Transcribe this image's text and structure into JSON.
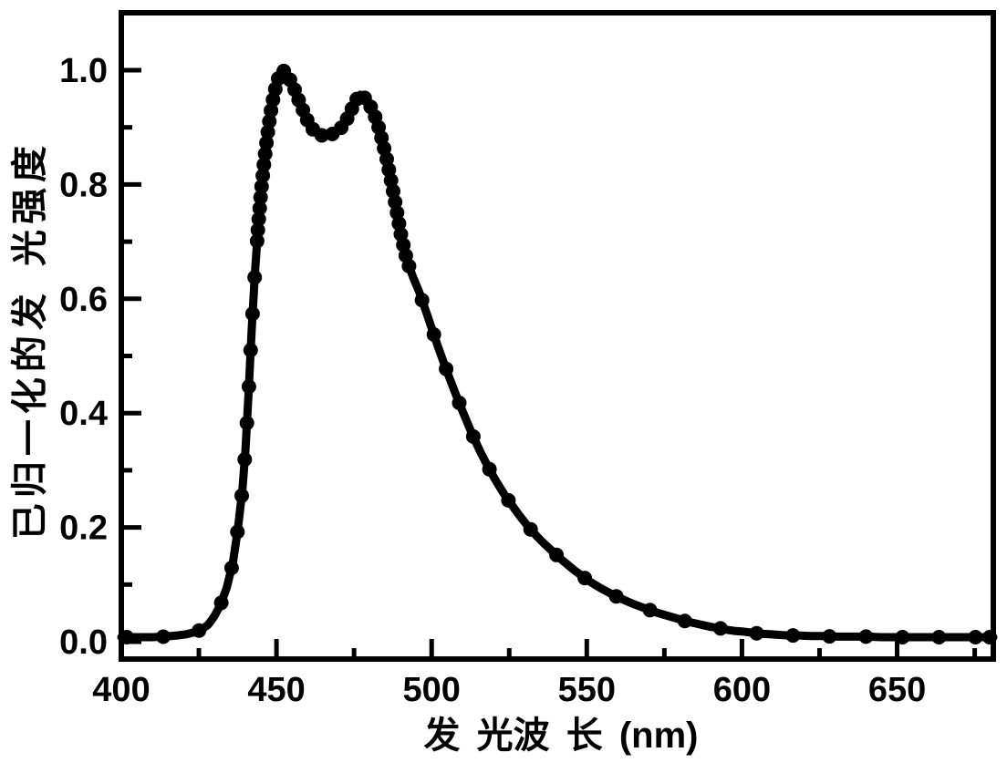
{
  "chart_data": {
    "type": "line",
    "title": "",
    "xlabel": "发 光波 长 (nm)",
    "ylabel": "已归一化的发 光强度",
    "x_unit": "nm",
    "xlim": [
      400,
      681
    ],
    "ylim": [
      -0.034,
      1.106
    ],
    "x_tick_labels": [
      "400",
      "450",
      "500",
      "550",
      "600",
      "650"
    ],
    "x_minor_ticks": [
      425,
      475,
      525,
      575,
      625,
      675
    ],
    "y_tick_labels": [
      "0.0",
      "0.2",
      "0.4",
      "0.6",
      "0.8",
      "1.0"
    ],
    "y_minor_ticks": [
      0.1,
      0.3,
      0.5,
      0.7,
      0.9
    ],
    "grid": false,
    "legend": "none",
    "background_color": "#ffffff",
    "line_color": "#000000",
    "marker_shape": "filled-circle",
    "peaks": [
      {
        "wavelength_nm": 451.5,
        "intensity": 1.0
      },
      {
        "wavelength_nm": 477.0,
        "intensity": 0.957
      }
    ],
    "valley": {
      "wavelength_nm": 465.0,
      "intensity": 0.885
    },
    "points": [
      [
        400,
        0.008
      ],
      [
        405,
        0.008
      ],
      [
        410,
        0.008
      ],
      [
        414,
        0.009
      ],
      [
        418,
        0.011
      ],
      [
        421,
        0.013
      ],
      [
        424,
        0.017
      ],
      [
        426,
        0.022
      ],
      [
        428,
        0.03
      ],
      [
        430,
        0.045
      ],
      [
        432,
        0.065
      ],
      [
        434,
        0.095
      ],
      [
        436,
        0.14
      ],
      [
        437.5,
        0.195
      ],
      [
        439,
        0.265
      ],
      [
        440,
        0.335
      ],
      [
        441,
        0.435
      ],
      [
        442,
        0.545
      ],
      [
        443,
        0.64
      ],
      [
        444,
        0.72
      ],
      [
        445,
        0.785
      ],
      [
        446,
        0.838
      ],
      [
        447,
        0.884
      ],
      [
        448,
        0.922
      ],
      [
        449,
        0.952
      ],
      [
        450,
        0.976
      ],
      [
        451,
        0.993
      ],
      [
        452,
        1.0
      ],
      [
        453,
        0.996
      ],
      [
        454,
        0.987
      ],
      [
        455.5,
        0.971
      ],
      [
        457,
        0.95
      ],
      [
        458.5,
        0.931
      ],
      [
        460,
        0.912
      ],
      [
        461.5,
        0.898
      ],
      [
        463,
        0.89
      ],
      [
        464.5,
        0.886
      ],
      [
        466,
        0.885
      ],
      [
        467.5,
        0.887
      ],
      [
        469,
        0.891
      ],
      [
        470.5,
        0.897
      ],
      [
        472,
        0.907
      ],
      [
        473.5,
        0.923
      ],
      [
        475,
        0.941
      ],
      [
        476,
        0.951
      ],
      [
        477,
        0.957
      ],
      [
        478,
        0.954
      ],
      [
        479.5,
        0.945
      ],
      [
        481,
        0.929
      ],
      [
        482.5,
        0.909
      ],
      [
        484,
        0.878
      ],
      [
        485.5,
        0.845
      ],
      [
        487,
        0.805
      ],
      [
        488.5,
        0.762
      ],
      [
        490,
        0.715
      ],
      [
        492,
        0.668
      ],
      [
        494,
        0.638
      ],
      [
        496,
        0.612
      ],
      [
        498,
        0.581
      ],
      [
        500,
        0.549
      ],
      [
        502,
        0.517
      ],
      [
        504,
        0.487
      ],
      [
        506,
        0.458
      ],
      [
        508,
        0.43
      ],
      [
        510,
        0.403
      ],
      [
        512,
        0.377
      ],
      [
        514,
        0.352
      ],
      [
        516,
        0.329
      ],
      [
        518,
        0.308
      ],
      [
        520,
        0.288
      ],
      [
        522,
        0.27
      ],
      [
        524,
        0.253
      ],
      [
        526,
        0.238
      ],
      [
        528,
        0.223
      ],
      [
        530,
        0.209
      ],
      [
        532,
        0.196
      ],
      [
        534,
        0.184
      ],
      [
        536,
        0.173
      ],
      [
        538,
        0.163
      ],
      [
        540,
        0.153
      ],
      [
        542,
        0.143
      ],
      [
        544,
        0.134
      ],
      [
        546,
        0.125
      ],
      [
        548,
        0.117
      ],
      [
        550,
        0.109
      ],
      [
        552.5,
        0.1
      ],
      [
        555,
        0.092
      ],
      [
        557.5,
        0.085
      ],
      [
        560,
        0.078
      ],
      [
        562.5,
        0.072
      ],
      [
        565,
        0.066
      ],
      [
        567.5,
        0.061
      ],
      [
        570,
        0.056
      ],
      [
        572.5,
        0.051
      ],
      [
        575,
        0.047
      ],
      [
        577.5,
        0.043
      ],
      [
        580,
        0.039
      ],
      [
        582.5,
        0.035
      ],
      [
        585,
        0.032
      ],
      [
        587.5,
        0.029
      ],
      [
        590,
        0.026
      ],
      [
        592.5,
        0.024
      ],
      [
        595,
        0.021
      ],
      [
        597.5,
        0.019
      ],
      [
        600,
        0.018
      ],
      [
        603,
        0.016
      ],
      [
        606,
        0.014
      ],
      [
        609,
        0.013
      ],
      [
        612,
        0.012
      ],
      [
        615,
        0.011
      ],
      [
        618,
        0.011
      ],
      [
        622,
        0.01
      ],
      [
        626,
        0.01
      ],
      [
        630,
        0.009
      ],
      [
        635,
        0.009
      ],
      [
        640,
        0.009
      ],
      [
        645,
        0.008
      ],
      [
        650,
        0.008
      ],
      [
        656,
        0.008
      ],
      [
        662,
        0.008
      ],
      [
        668,
        0.008
      ],
      [
        674,
        0.008
      ],
      [
        681,
        0.008
      ]
    ]
  }
}
